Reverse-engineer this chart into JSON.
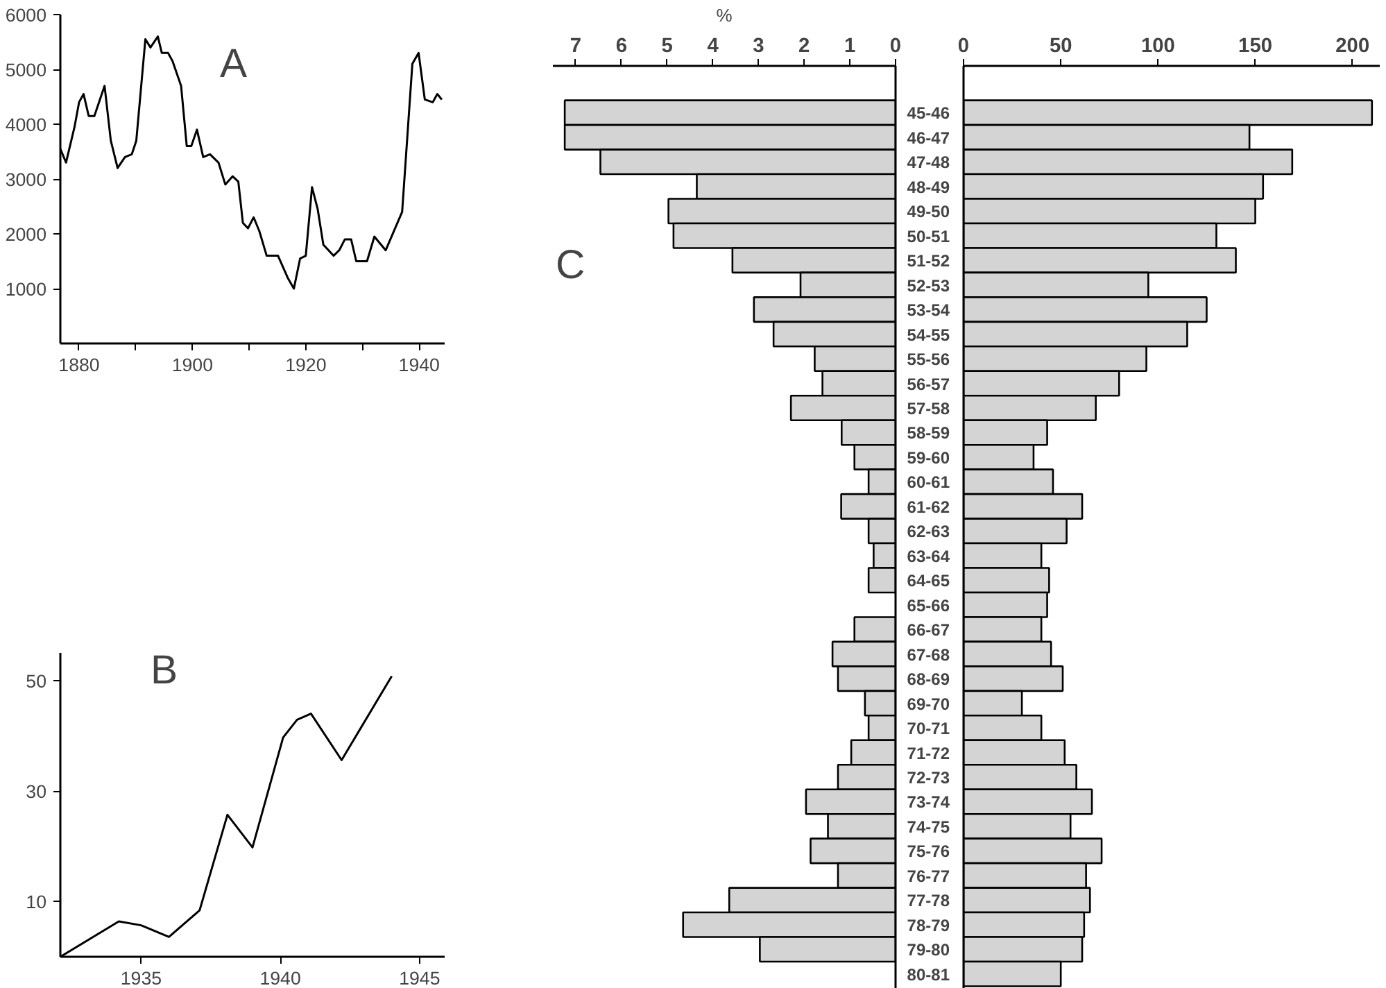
{
  "chart_data": [
    {
      "type": "line",
      "title": "A",
      "x": [
        1876.7,
        1877.7,
        1879.2,
        1880,
        1880.8,
        1881.7,
        1882.7,
        1884.5,
        1885.6,
        1886.8,
        1888.1,
        1889.3,
        1890.1,
        1891.7,
        1892.6,
        1893.9,
        1894.6,
        1895.7,
        1896.5,
        1898,
        1899,
        1899.8,
        1900.8,
        1901.9,
        1903.1,
        1904.6,
        1905.8,
        1907.1,
        1908.1,
        1908.9,
        1909.8,
        1910.8,
        1911.8,
        1913.1,
        1914,
        1915.1,
        1916.8,
        1917.9,
        1919,
        1920,
        1921.1,
        1922.1,
        1923.1,
        1924.9,
        1925.9,
        1926.9,
        1928,
        1928.9,
        1930.8,
        1932.1,
        1934.1,
        1937,
        1938.8,
        1939.9,
        1941,
        1942.4,
        1943.2,
        1944
      ],
      "series": [
        {
          "color": "#000000",
          "values": [
            3550,
            3300,
            3950,
            4400,
            4550,
            4150,
            4150,
            4700,
            3700,
            3200,
            3400,
            3450,
            3700,
            5550,
            5400,
            5600,
            5300,
            5300,
            5150,
            4700,
            3600,
            3600,
            3900,
            3400,
            3450,
            3300,
            2900,
            3050,
            2950,
            2200,
            2100,
            2300,
            2050,
            1600,
            1600,
            1600,
            1200,
            1000,
            1550,
            1600,
            2850,
            2450,
            1800,
            1600,
            1700,
            1900,
            1900,
            1500,
            1500,
            1950,
            1700,
            2400,
            5100,
            5300,
            4450,
            4400,
            4550,
            4450
          ]
        }
      ],
      "xlim": [
        1876.7,
        1944.5
      ],
      "ylim": [
        0,
        6000
      ],
      "xticks": [
        1880,
        {
          "value": 1890,
          "label": null
        },
        1900,
        {
          "value": 1910,
          "label": null
        },
        1920,
        {
          "value": 1930,
          "label": null
        },
        1940
      ],
      "yticks": [
        1000,
        2000,
        3000,
        4000,
        5000,
        6000
      ],
      "grid": false,
      "line_style": "solid"
    },
    {
      "type": "line",
      "title": "B",
      "x": [
        1932.1,
        1934.2,
        1935,
        1936,
        1937.1,
        1938.1,
        1939,
        1940.1,
        1940.6,
        1941.1,
        1942.2,
        1944
      ],
      "series": [
        {
          "color": "#000000",
          "values": [
            0,
            6.4,
            5.7,
            3.6,
            8.4,
            25.7,
            19.8,
            39.7,
            42.9,
            44,
            35.6,
            50.8
          ]
        }
      ],
      "xlim": [
        1932.1,
        1945.9
      ],
      "ylim": [
        0,
        55
      ],
      "xticks": [
        1935,
        1940,
        1945
      ],
      "yticks": [
        10,
        30,
        50
      ],
      "grid": false,
      "line_style": "solid"
    },
    {
      "type": "bar",
      "title": "C",
      "orientation": "horizontal",
      "xlabel": "%",
      "tick_labels": "x",
      "categories": [
        null,
        null,
        null,
        null,
        null,
        null,
        null,
        null,
        null,
        null,
        null,
        null,
        null,
        null,
        null,
        null,
        null,
        null,
        null,
        null,
        null,
        null,
        null,
        null,
        null,
        null,
        null,
        null,
        null,
        null,
        null,
        null,
        null,
        null,
        null,
        null
      ],
      "values": [
        7.24,
        7.24,
        6.46,
        4.35,
        4.97,
        4.86,
        3.57,
        2.08,
        3.1,
        2.67,
        1.77,
        1.6,
        2.29,
        1.18,
        0.9,
        0.59,
        1.19,
        0.59,
        0.48,
        0.59,
        null,
        0.9,
        1.38,
        1.26,
        0.67,
        0.59,
        0.97,
        1.26,
        1.96,
        1.48,
        1.86,
        1.26,
        3.64,
        4.65,
        2.97,
        null
      ],
      "color": "#d4d4d4",
      "xlim": [
        7.5,
        0
      ],
      "xticks": [
        0,
        1,
        2,
        3,
        4,
        5,
        6,
        7
      ],
      "grid": false
    },
    {
      "type": "bar",
      "orientation": "horizontal",
      "categories": [
        "45-46",
        "46-47",
        "47-48",
        "48-49",
        "49-50",
        "50-51",
        "51-52",
        "52-53",
        "53-54",
        "54-55",
        "55-56",
        "56-57",
        "57-58",
        "58-59",
        "59-60",
        "60-61",
        "61-62",
        "62-63",
        "63-64",
        "64-65",
        "65-66",
        "66-67",
        "67-68",
        "68-69",
        "69-70",
        "70-71",
        "71-72",
        "72-73",
        "73-74",
        "74-75",
        "75-76",
        "76-77",
        "77-78",
        "78-79",
        "79-80",
        "80-81"
      ],
      "values": [
        210,
        147,
        169,
        154,
        150,
        130,
        140,
        95,
        125,
        115,
        94,
        80,
        68,
        43,
        36,
        46,
        61,
        53,
        40,
        44,
        43,
        40,
        45,
        51,
        30,
        40,
        52,
        58,
        66,
        55,
        71,
        63,
        65,
        62,
        61,
        50
      ],
      "color": "#d4d4d4",
      "xlim": [
        0,
        214
      ],
      "xticks": [
        0,
        50,
        100,
        150,
        200
      ],
      "grid": false
    }
  ]
}
